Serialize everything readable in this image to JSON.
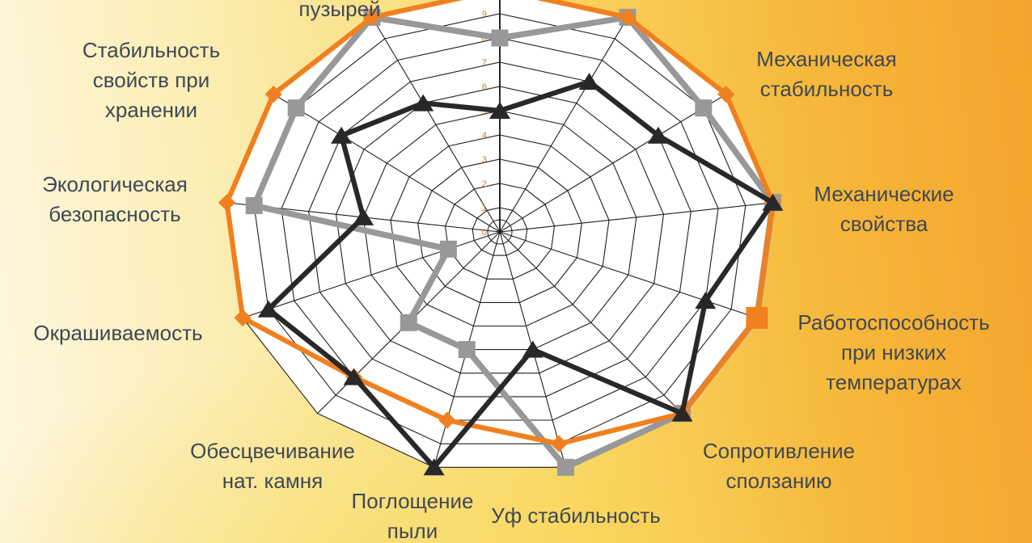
{
  "figure": {
    "description_colors": {
      "background_left": "#FDF7E0",
      "background_right": "#F4A42C",
      "plot_fill": "#FFFFFF",
      "grid": "#1E1E1E",
      "label_text": "#3F4855",
      "tick_text": "#D07A1E"
    }
  },
  "chart_data": {
    "type": "radar",
    "title": "",
    "rings": 10,
    "axis": {
      "min": 0,
      "max": 10,
      "unit": 1,
      "tick_labels": [
        "0",
        "1",
        "2",
        "3",
        "4",
        "5",
        "6",
        "7",
        "8",
        "9"
      ],
      "tick_color": "#D07A1E"
    },
    "categories": [
      {
        "label_lines": []
      },
      {
        "label_lines": []
      },
      {
        "label_lines": [
          "Механическая",
          "стабильность"
        ]
      },
      {
        "label_lines": [
          "Механические",
          "свойства"
        ]
      },
      {
        "label_lines": [
          "Работоспособность",
          "при низких",
          "температурах"
        ]
      },
      {
        "label_lines": [
          "Сопротивление",
          "сползанию"
        ]
      },
      {
        "label_lines": [
          "Уф стабильность"
        ]
      },
      {
        "label_lines": [
          "Поглощение",
          "пыли"
        ]
      },
      {
        "label_lines": [
          "Обесцвечивание",
          "нат. камня"
        ]
      },
      {
        "label_lines": [
          "Окрашиваемость"
        ]
      },
      {
        "label_lines": [
          "Экологическая",
          "безопасность"
        ]
      },
      {
        "label_lines": [
          "Стабильность",
          "свойств при",
          "хранении"
        ]
      },
      {
        "label_lines": [
          "пузырей"
        ]
      }
    ],
    "series": [
      {
        "name": "orange-diamond-series",
        "color": "#F0801F",
        "marker": "diamond",
        "emphasized_marker_index": 4,
        "values": [
          10,
          10,
          10,
          10,
          10,
          10,
          9,
          8,
          8,
          10,
          10,
          10,
          10
        ]
      },
      {
        "name": "gray-square-series",
        "color": "#98989A",
        "marker": "square",
        "values": [
          8,
          10,
          9,
          10,
          10,
          10,
          10,
          5,
          5,
          2,
          9,
          9,
          10
        ]
      },
      {
        "name": "black-triangle-series",
        "color": "#282828",
        "marker": "triangle",
        "values": [
          5,
          7,
          7,
          10,
          8,
          10,
          5,
          10,
          8,
          9,
          5,
          7,
          6
        ]
      }
    ]
  }
}
